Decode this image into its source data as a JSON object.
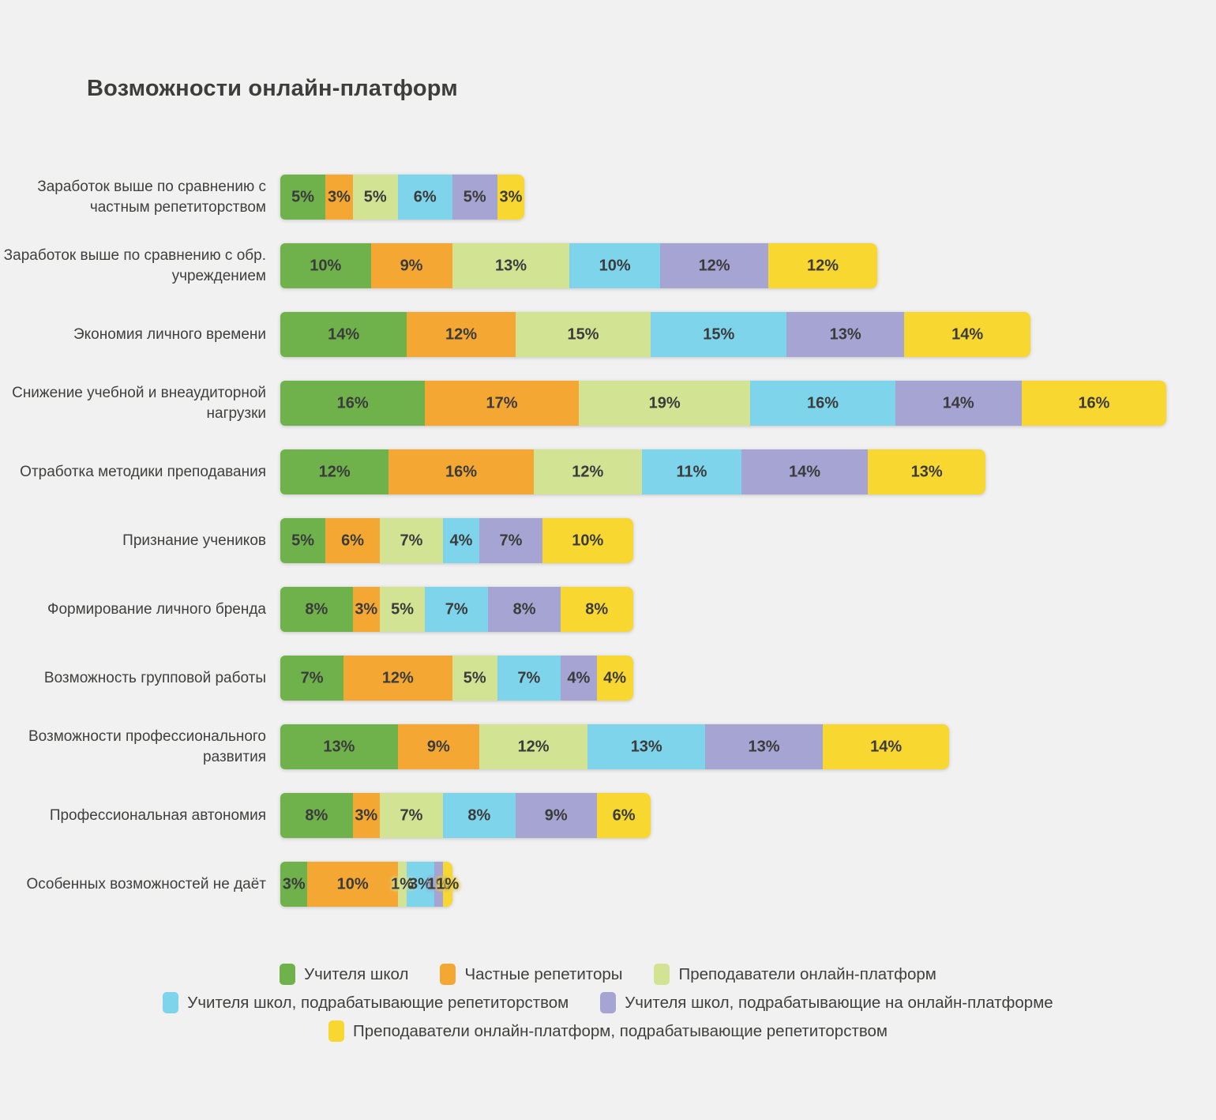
{
  "page": {
    "background": "#f1f1f1"
  },
  "title": "Возможности онлайн-платформ",
  "chart_data": {
    "type": "bar",
    "stacked": true,
    "orientation": "horizontal",
    "title": "Возможности онлайн-платформ",
    "value_suffix": "%",
    "xlim": [
      0,
      100
    ],
    "grid": false,
    "legend_position": "bottom",
    "legend_rows": [
      [
        0,
        1,
        2
      ],
      [
        3,
        4
      ],
      [
        5
      ]
    ],
    "categories": [
      "Заработок выше по сравнению с частным репетиторством",
      "Заработок выше по сравнению с обр. учреждением",
      "Экономия личного времени",
      "Снижение учебной и внеаудиторной нагрузки",
      "Отработка методики преподавания",
      "Признание учеников",
      "Формирование личного бренда",
      "Возможность групповой работы",
      "Возможности профессионального развития",
      "Профессиональная автономия",
      "Особенных возможностей не даёт"
    ],
    "series": [
      {
        "name": "Учителя школ",
        "color": "#6fb24c",
        "values": [
          5,
          10,
          14,
          16,
          12,
          5,
          8,
          7,
          13,
          8,
          3
        ]
      },
      {
        "name": "Частные репетиторы",
        "color": "#f5a733",
        "values": [
          3,
          9,
          12,
          17,
          16,
          6,
          3,
          12,
          9,
          3,
          10
        ]
      },
      {
        "name": "Преподаватели онлайн-платформ",
        "color": "#d2e394",
        "values": [
          5,
          13,
          15,
          19,
          12,
          7,
          5,
          5,
          12,
          7,
          1
        ]
      },
      {
        "name": "Учителя школ, подрабатывающие репетиторством",
        "color": "#7ed4eb",
        "values": [
          6,
          10,
          15,
          16,
          11,
          4,
          7,
          7,
          13,
          8,
          3
        ]
      },
      {
        "name": "Учителя школ, подрабатывающие на онлайн-платформе",
        "color": "#a5a4d2",
        "values": [
          5,
          12,
          13,
          14,
          14,
          7,
          8,
          4,
          13,
          9,
          1
        ]
      },
      {
        "name": "Преподаватели онлайн-платформ, подрабатывающие репетиторством",
        "color": "#f8d730",
        "values": [
          3,
          12,
          14,
          16,
          13,
          10,
          8,
          4,
          14,
          6,
          1
        ]
      }
    ]
  }
}
